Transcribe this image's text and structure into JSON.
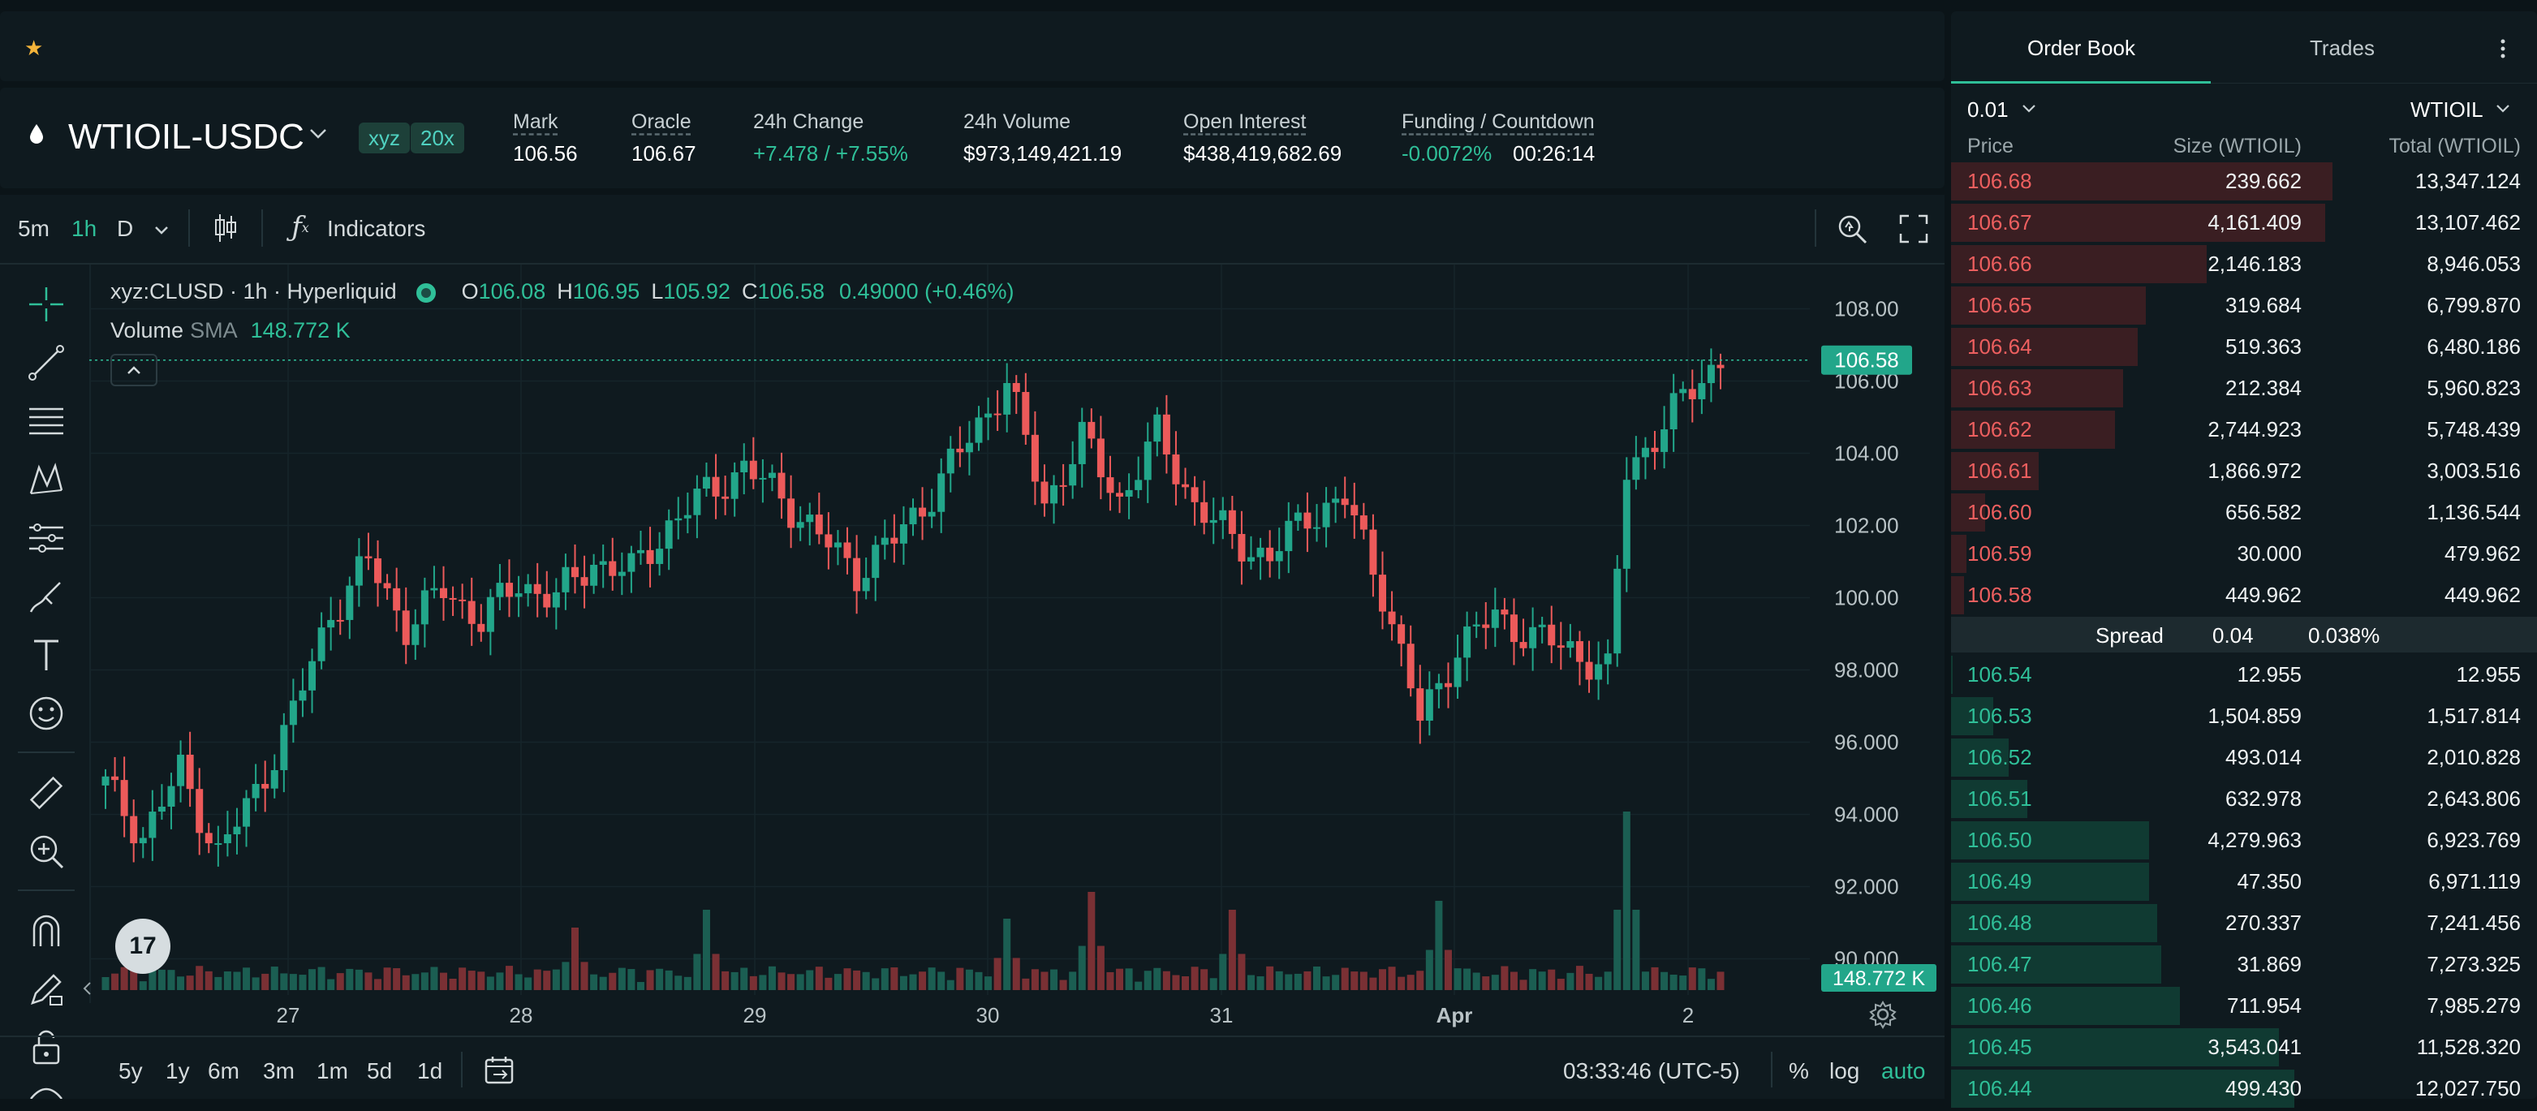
{
  "market": {
    "pair": "WTIOIL-USDC",
    "badges": [
      "xyz",
      "20x"
    ],
    "stats": [
      {
        "label": "Mark",
        "value": "106.56",
        "underline": true,
        "tone": "neutral"
      },
      {
        "label": "Oracle",
        "value": "106.67",
        "underline": true,
        "tone": "neutral"
      },
      {
        "label": "24h Change",
        "value": "+7.478 / +7.55%",
        "underline": false,
        "tone": "green"
      },
      {
        "label": "24h Volume",
        "value": "$973,149,421.19",
        "underline": false,
        "tone": "neutral"
      },
      {
        "label": "Open Interest",
        "value": "$438,419,682.69",
        "underline": true,
        "tone": "neutral"
      },
      {
        "label": "Funding / Countdown",
        "value": "-0.0072%",
        "value2": "00:26:14",
        "underline": true,
        "tone": "green"
      }
    ]
  },
  "toolbar": {
    "timeframes": [
      {
        "label": "5m",
        "active": false
      },
      {
        "label": "1h",
        "active": true
      },
      {
        "label": "D",
        "active": false
      }
    ],
    "indicators_label": "Indicators"
  },
  "legend": {
    "symbol": "xyz:CLUSD · 1h · Hyperliquid",
    "o_label": "O",
    "o": "106.08",
    "h_label": "H",
    "h": "106.95",
    "l_label": "L",
    "l": "105.92",
    "c_label": "C",
    "c": "106.58",
    "change": "0.49000 (+0.46%)",
    "volume_label": "Volume",
    "sma_label": "SMA",
    "volume_value": "148.772 K"
  },
  "tv_logo": "17",
  "bottom_bar": {
    "ranges": [
      "5y",
      "1y",
      "6m",
      "3m",
      "1m",
      "5d",
      "1d"
    ],
    "clock": "03:33:46 (UTC-5)",
    "percent": "%",
    "log": "log",
    "auto": "auto"
  },
  "chart_data": {
    "type": "candlestick",
    "symbol": "xyz:CLUSD",
    "interval": "1h",
    "x_ticks": [
      "27",
      "28",
      "29",
      "30",
      "31",
      "Apr",
      "2"
    ],
    "y_ticks": [
      "108.00",
      "106.00",
      "104.00",
      "102.00",
      "100.00",
      "98.000",
      "96.000",
      "94.000",
      "92.000",
      "90.000"
    ],
    "ylim": [
      89.0,
      109.0
    ],
    "last_price_label": "106.58",
    "volume_label": "148.772 K",
    "close_path": [
      [
        0,
        94.8
      ],
      [
        4,
        93.4
      ],
      [
        8,
        95.2
      ],
      [
        12,
        92.9
      ],
      [
        16,
        94.6
      ],
      [
        20,
        96.8
      ],
      [
        24,
        99.6
      ],
      [
        28,
        101.0
      ],
      [
        32,
        99.2
      ],
      [
        36,
        100.2
      ],
      [
        40,
        99.4
      ],
      [
        44,
        100.4
      ],
      [
        48,
        100.0
      ],
      [
        52,
        101.0
      ],
      [
        56,
        100.7
      ],
      [
        60,
        102.0
      ],
      [
        64,
        102.9
      ],
      [
        68,
        103.6
      ],
      [
        72,
        102.8
      ],
      [
        76,
        101.7
      ],
      [
        80,
        100.7
      ],
      [
        84,
        101.6
      ],
      [
        88,
        102.9
      ],
      [
        92,
        104.4
      ],
      [
        96,
        106.0
      ],
      [
        100,
        102.6
      ],
      [
        104,
        104.4
      ],
      [
        108,
        102.7
      ],
      [
        112,
        104.5
      ],
      [
        116,
        102.6
      ],
      [
        120,
        101.6
      ],
      [
        124,
        101.1
      ],
      [
        128,
        102.3
      ],
      [
        132,
        102.7
      ],
      [
        136,
        100.2
      ],
      [
        140,
        96.6
      ],
      [
        144,
        98.6
      ],
      [
        148,
        99.5
      ],
      [
        152,
        98.9
      ],
      [
        156,
        98.6
      ],
      [
        160,
        97.9
      ],
      [
        162,
        103.5
      ],
      [
        166,
        104.8
      ],
      [
        170,
        106.1
      ],
      [
        172,
        106.6
      ]
    ],
    "volume_spikes": [
      [
        50,
        0.35
      ],
      [
        64,
        0.45
      ],
      [
        96,
        0.4
      ],
      [
        105,
        0.55
      ],
      [
        120,
        0.45
      ],
      [
        142,
        0.5
      ],
      [
        162,
        1.0
      ]
    ]
  },
  "orderbook": {
    "tabs": [
      {
        "label": "Order Book",
        "active": true
      },
      {
        "label": "Trades",
        "active": false
      }
    ],
    "tick": "0.01",
    "unit": "WTIOIL",
    "columns": {
      "price": "Price",
      "size": "Size (WTIOIL)",
      "total": "Total (WTIOIL)"
    },
    "asks": [
      {
        "price": "106.68",
        "size": "239.662",
        "total": "13,347.124",
        "depth": 1.0
      },
      {
        "price": "106.67",
        "size": "4,161.409",
        "total": "13,107.462",
        "depth": 0.98
      },
      {
        "price": "106.66",
        "size": "2,146.183",
        "total": "8,946.053",
        "depth": 0.67
      },
      {
        "price": "106.65",
        "size": "319.684",
        "total": "6,799.870",
        "depth": 0.51
      },
      {
        "price": "106.64",
        "size": "519.363",
        "total": "6,480.186",
        "depth": 0.49
      },
      {
        "price": "106.63",
        "size": "212.384",
        "total": "5,960.823",
        "depth": 0.45
      },
      {
        "price": "106.62",
        "size": "2,744.923",
        "total": "5,748.439",
        "depth": 0.43
      },
      {
        "price": "106.61",
        "size": "1,866.972",
        "total": "3,003.516",
        "depth": 0.23
      },
      {
        "price": "106.60",
        "size": "656.582",
        "total": "1,136.544",
        "depth": 0.09
      },
      {
        "price": "106.59",
        "size": "30.000",
        "total": "479.962",
        "depth": 0.04
      },
      {
        "price": "106.58",
        "size": "449.962",
        "total": "449.962",
        "depth": 0.035
      }
    ],
    "spread": {
      "label": "Spread",
      "value": "0.04",
      "percent": "0.038%"
    },
    "bids": [
      {
        "price": "106.54",
        "size": "12.955",
        "total": "12.955",
        "depth": 0.001
      },
      {
        "price": "106.53",
        "size": "1,504.859",
        "total": "1,517.814",
        "depth": 0.11
      },
      {
        "price": "106.52",
        "size": "493.014",
        "total": "2,010.828",
        "depth": 0.15
      },
      {
        "price": "106.51",
        "size": "632.978",
        "total": "2,643.806",
        "depth": 0.2
      },
      {
        "price": "106.50",
        "size": "4,279.963",
        "total": "6,923.769",
        "depth": 0.52
      },
      {
        "price": "106.49",
        "size": "47.350",
        "total": "6,971.119",
        "depth": 0.52
      },
      {
        "price": "106.48",
        "size": "270.337",
        "total": "7,241.456",
        "depth": 0.54
      },
      {
        "price": "106.47",
        "size": "31.869",
        "total": "7,273.325",
        "depth": 0.55
      },
      {
        "price": "106.46",
        "size": "711.954",
        "total": "7,985.279",
        "depth": 0.6
      },
      {
        "price": "106.45",
        "size": "3,543.041",
        "total": "11,528.320",
        "depth": 0.86
      },
      {
        "price": "106.44",
        "size": "499.430",
        "total": "12,027.750",
        "depth": 0.9
      }
    ]
  }
}
